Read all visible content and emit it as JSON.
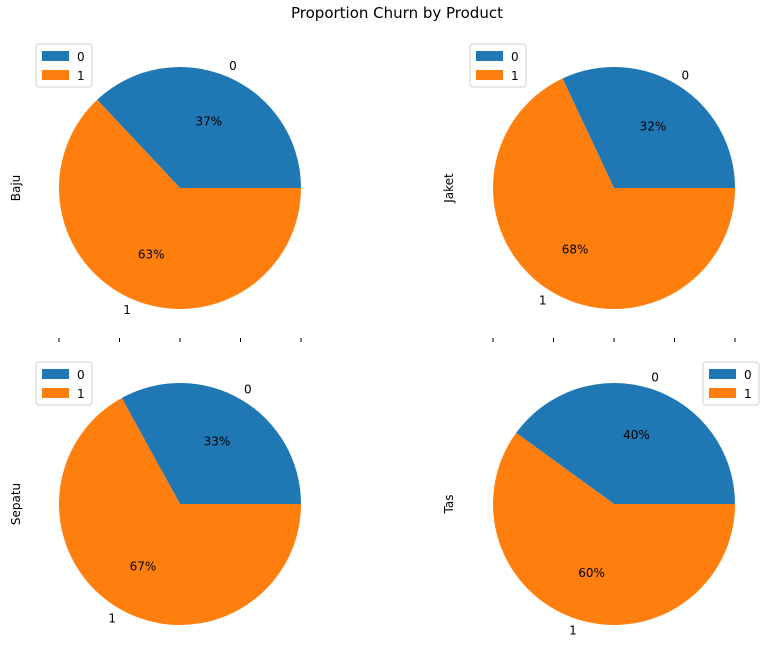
{
  "figure": {
    "title": "Proportion Churn by Product"
  },
  "colors": {
    "0": "#1f77b4",
    "1": "#ff7f0e"
  },
  "chart_data": [
    {
      "type": "pie",
      "ylabel": "Baju",
      "categories": [
        "0",
        "1"
      ],
      "values": [
        37,
        63
      ],
      "percent_labels": [
        "37%",
        "63%"
      ],
      "legend": {
        "entries": [
          "0",
          "1"
        ],
        "placement": "upper-left"
      }
    },
    {
      "type": "pie",
      "ylabel": "Jaket",
      "categories": [
        "0",
        "1"
      ],
      "values": [
        32,
        68
      ],
      "percent_labels": [
        "32%",
        "68%"
      ],
      "legend": {
        "entries": [
          "0",
          "1"
        ],
        "placement": "upper-left"
      }
    },
    {
      "type": "pie",
      "ylabel": "Sepatu",
      "categories": [
        "0",
        "1"
      ],
      "values": [
        33,
        67
      ],
      "percent_labels": [
        "33%",
        "67%"
      ],
      "legend": {
        "entries": [
          "0",
          "1"
        ],
        "placement": "upper-left"
      }
    },
    {
      "type": "pie",
      "ylabel": "Tas",
      "categories": [
        "0",
        "1"
      ],
      "values": [
        40,
        60
      ],
      "percent_labels": [
        "40%",
        "60%"
      ],
      "legend": {
        "entries": [
          "0",
          "1"
        ],
        "placement": "upper-right"
      }
    }
  ]
}
